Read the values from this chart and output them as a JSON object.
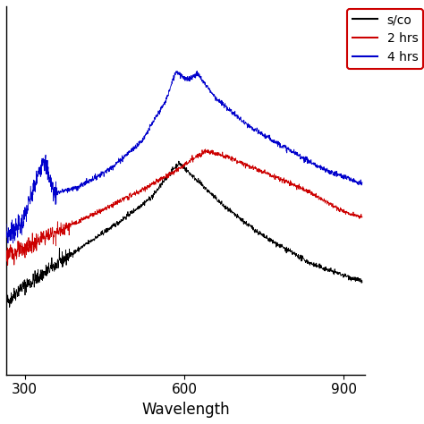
{
  "title": "",
  "xlabel": "Wavelength",
  "ylabel": "",
  "xlim": [
    265,
    940
  ],
  "ylim": [
    -1.1,
    1.3
  ],
  "legend_labels": [
    "s/co",
    "2 hrs",
    "4 hrs"
  ],
  "x_ticks": [
    300,
    600,
    900
  ],
  "background": "#ffffff",
  "noise_seed_black": 42,
  "noise_seed_red": 123,
  "noise_seed_blue": 7
}
